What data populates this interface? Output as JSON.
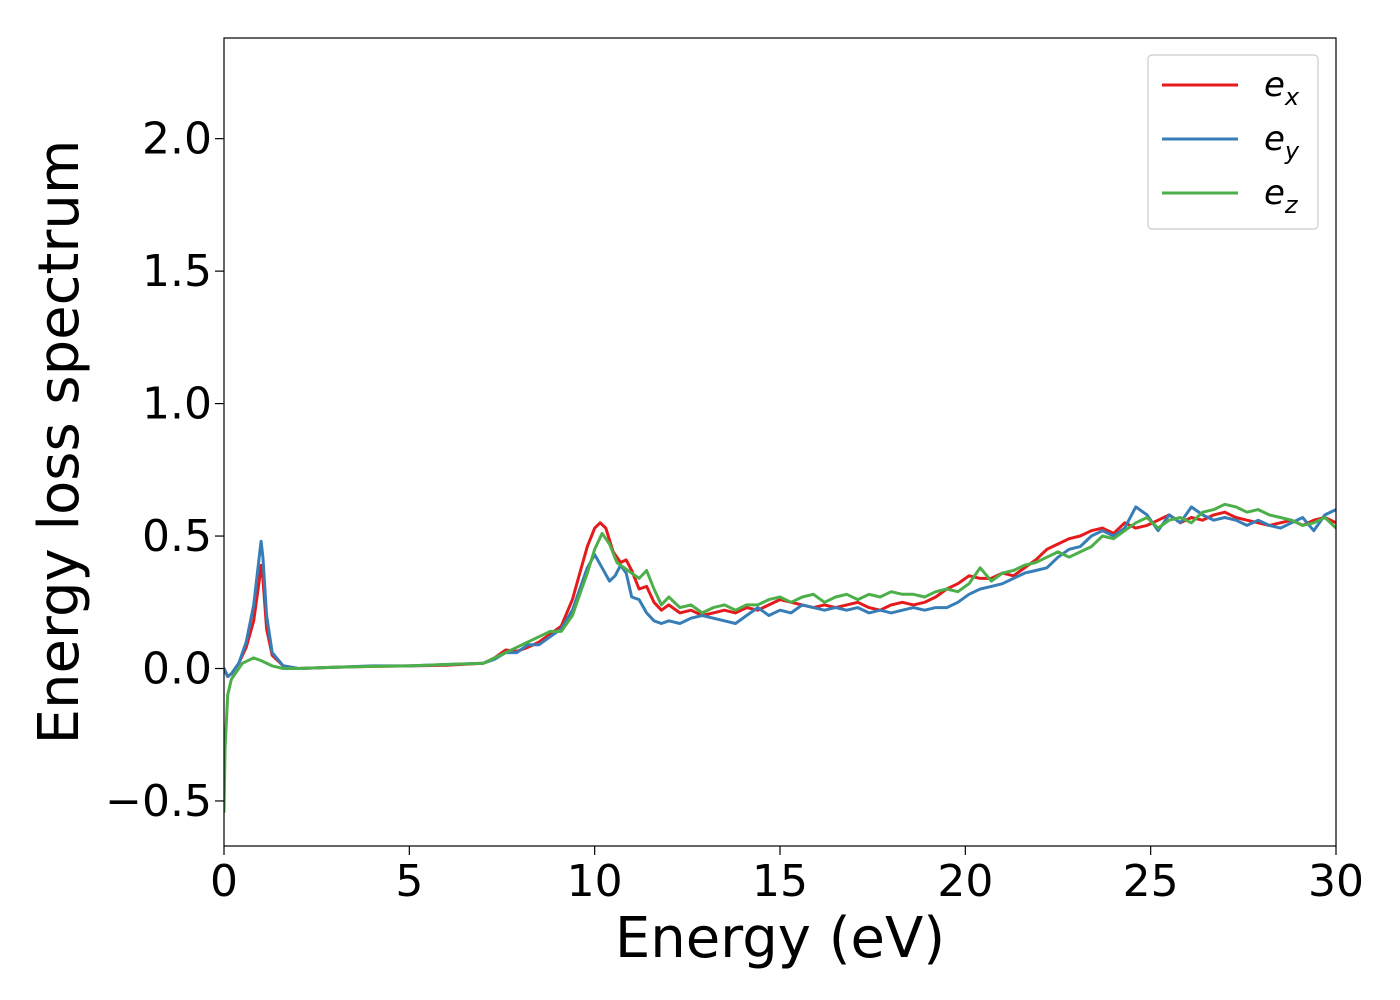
{
  "chart_data": {
    "type": "line",
    "title": "",
    "xlabel": "Energy (eV)",
    "ylabel": "Energy loss spectrum",
    "xlim": [
      0,
      30
    ],
    "ylim": [
      -0.67,
      2.38
    ],
    "xticks": [
      0,
      5,
      10,
      15,
      20,
      25,
      30
    ],
    "xtick_labels": [
      "0",
      "5",
      "10",
      "15",
      "20",
      "25",
      "30"
    ],
    "yticks": [
      -0.5,
      0.0,
      0.5,
      1.0,
      1.5,
      2.0
    ],
    "ytick_labels": [
      "−0.5",
      "0.0",
      "0.5",
      "1.0",
      "1.5",
      "2.0"
    ],
    "grid": false,
    "legend_position": "top-right",
    "series": [
      {
        "name": "e_x",
        "legend_base": "e",
        "legend_sub": "x",
        "color": "#e41a1c",
        "x": [
          0,
          0.1,
          0.2,
          0.4,
          0.6,
          0.8,
          0.95,
          1.0,
          1.05,
          1.15,
          1.3,
          1.6,
          2.0,
          3,
          4,
          5,
          6,
          7,
          7.3,
          7.6,
          7.9,
          8.2,
          8.5,
          8.8,
          9.1,
          9.4,
          9.6,
          9.8,
          10.0,
          10.15,
          10.3,
          10.5,
          10.7,
          10.85,
          11.0,
          11.2,
          11.4,
          11.6,
          11.8,
          12.0,
          12.3,
          12.6,
          12.9,
          13.2,
          13.5,
          13.8,
          14.1,
          14.4,
          14.7,
          15.0,
          15.3,
          15.6,
          15.9,
          16.2,
          16.5,
          16.8,
          17.1,
          17.4,
          17.7,
          18.0,
          18.3,
          18.6,
          18.9,
          19.2,
          19.5,
          19.8,
          20.1,
          20.4,
          20.7,
          21.0,
          21.3,
          21.6,
          21.9,
          22.2,
          22.5,
          22.8,
          23.1,
          23.4,
          23.7,
          24.0,
          24.3,
          24.6,
          24.9,
          25.2,
          25.5,
          25.8,
          26.1,
          26.4,
          26.7,
          27.0,
          27.3,
          27.6,
          27.9,
          28.2,
          28.5,
          28.8,
          29.1,
          29.4,
          29.7,
          30.0
        ],
        "y": [
          0.0,
          -0.03,
          -0.02,
          0.02,
          0.08,
          0.18,
          0.33,
          0.39,
          0.34,
          0.15,
          0.05,
          0.01,
          0.0,
          0.005,
          0.008,
          0.01,
          0.012,
          0.02,
          0.04,
          0.07,
          0.065,
          0.08,
          0.1,
          0.13,
          0.16,
          0.26,
          0.36,
          0.46,
          0.53,
          0.55,
          0.53,
          0.44,
          0.4,
          0.41,
          0.37,
          0.3,
          0.31,
          0.25,
          0.22,
          0.24,
          0.21,
          0.22,
          0.2,
          0.21,
          0.22,
          0.21,
          0.23,
          0.22,
          0.24,
          0.26,
          0.25,
          0.24,
          0.23,
          0.24,
          0.23,
          0.24,
          0.25,
          0.23,
          0.22,
          0.24,
          0.25,
          0.24,
          0.25,
          0.27,
          0.3,
          0.32,
          0.35,
          0.34,
          0.34,
          0.36,
          0.35,
          0.38,
          0.41,
          0.45,
          0.47,
          0.49,
          0.5,
          0.52,
          0.53,
          0.51,
          0.55,
          0.53,
          0.54,
          0.56,
          0.58,
          0.55,
          0.57,
          0.56,
          0.58,
          0.59,
          0.57,
          0.56,
          0.55,
          0.54,
          0.55,
          0.56,
          0.54,
          0.56,
          0.57,
          0.55
        ]
      },
      {
        "name": "e_y",
        "legend_base": "e",
        "legend_sub": "y",
        "color": "#377eb8",
        "x": [
          0,
          0.1,
          0.2,
          0.4,
          0.6,
          0.8,
          0.95,
          1.0,
          1.05,
          1.15,
          1.3,
          1.6,
          2.0,
          3,
          4,
          5,
          6,
          7,
          7.3,
          7.6,
          7.9,
          8.2,
          8.5,
          8.8,
          9.1,
          9.4,
          9.6,
          9.8,
          10.0,
          10.2,
          10.4,
          10.55,
          10.7,
          10.85,
          11.0,
          11.2,
          11.4,
          11.6,
          11.8,
          12.0,
          12.3,
          12.6,
          12.9,
          13.2,
          13.5,
          13.8,
          14.1,
          14.4,
          14.7,
          15.0,
          15.3,
          15.6,
          15.9,
          16.2,
          16.5,
          16.8,
          17.1,
          17.4,
          17.7,
          18.0,
          18.3,
          18.6,
          18.9,
          19.2,
          19.5,
          19.8,
          20.1,
          20.4,
          20.7,
          21.0,
          21.3,
          21.6,
          21.9,
          22.2,
          22.5,
          22.8,
          23.1,
          23.4,
          23.7,
          24.0,
          24.3,
          24.6,
          24.9,
          25.2,
          25.5,
          25.8,
          26.1,
          26.4,
          26.7,
          27.0,
          27.3,
          27.6,
          27.9,
          28.2,
          28.5,
          28.8,
          29.1,
          29.4,
          29.7,
          30.0
        ],
        "y": [
          0.0,
          -0.03,
          -0.02,
          0.02,
          0.1,
          0.24,
          0.42,
          0.48,
          0.42,
          0.2,
          0.06,
          0.01,
          0.0,
          0.005,
          0.01,
          0.01,
          0.015,
          0.02,
          0.035,
          0.06,
          0.06,
          0.09,
          0.09,
          0.12,
          0.15,
          0.22,
          0.3,
          0.38,
          0.43,
          0.38,
          0.33,
          0.35,
          0.39,
          0.36,
          0.27,
          0.26,
          0.21,
          0.18,
          0.17,
          0.18,
          0.17,
          0.19,
          0.2,
          0.19,
          0.18,
          0.17,
          0.2,
          0.23,
          0.2,
          0.22,
          0.21,
          0.24,
          0.23,
          0.22,
          0.23,
          0.22,
          0.23,
          0.21,
          0.22,
          0.21,
          0.22,
          0.23,
          0.22,
          0.23,
          0.23,
          0.25,
          0.28,
          0.3,
          0.31,
          0.32,
          0.34,
          0.36,
          0.37,
          0.38,
          0.42,
          0.45,
          0.46,
          0.5,
          0.52,
          0.5,
          0.53,
          0.61,
          0.58,
          0.52,
          0.58,
          0.55,
          0.61,
          0.58,
          0.56,
          0.57,
          0.56,
          0.54,
          0.56,
          0.54,
          0.53,
          0.55,
          0.57,
          0.52,
          0.58,
          0.6
        ]
      },
      {
        "name": "e_z",
        "legend_base": "e",
        "legend_sub": "z",
        "color": "#4daf4a",
        "x": [
          0,
          0.03,
          0.1,
          0.2,
          0.3,
          0.5,
          0.8,
          1.0,
          1.3,
          1.6,
          2.0,
          3,
          4,
          5,
          6,
          7,
          7.3,
          7.6,
          7.9,
          8.2,
          8.5,
          8.8,
          9.1,
          9.4,
          9.6,
          9.8,
          10.0,
          10.2,
          10.4,
          10.6,
          10.8,
          11.0,
          11.2,
          11.4,
          11.6,
          11.8,
          12.0,
          12.3,
          12.6,
          12.9,
          13.2,
          13.5,
          13.8,
          14.1,
          14.4,
          14.7,
          15.0,
          15.3,
          15.6,
          15.9,
          16.2,
          16.5,
          16.8,
          17.1,
          17.4,
          17.7,
          18.0,
          18.3,
          18.6,
          18.9,
          19.2,
          19.5,
          19.8,
          20.1,
          20.4,
          20.7,
          21.0,
          21.3,
          21.6,
          21.9,
          22.2,
          22.5,
          22.8,
          23.1,
          23.4,
          23.7,
          24.0,
          24.3,
          24.6,
          24.9,
          25.2,
          25.5,
          25.8,
          26.1,
          26.4,
          26.7,
          27.0,
          27.3,
          27.6,
          27.9,
          28.2,
          28.5,
          28.8,
          29.1,
          29.4,
          29.7,
          30.0
        ],
        "y": [
          -0.54,
          -0.3,
          -0.1,
          -0.04,
          -0.02,
          0.02,
          0.04,
          0.03,
          0.01,
          0.0,
          0.0,
          0.005,
          0.008,
          0.01,
          0.015,
          0.02,
          0.04,
          0.06,
          0.08,
          0.1,
          0.12,
          0.14,
          0.14,
          0.2,
          0.28,
          0.36,
          0.45,
          0.51,
          0.47,
          0.4,
          0.38,
          0.36,
          0.34,
          0.37,
          0.3,
          0.24,
          0.27,
          0.23,
          0.24,
          0.21,
          0.23,
          0.24,
          0.22,
          0.24,
          0.24,
          0.26,
          0.27,
          0.25,
          0.27,
          0.28,
          0.25,
          0.27,
          0.28,
          0.26,
          0.28,
          0.27,
          0.29,
          0.28,
          0.28,
          0.27,
          0.29,
          0.3,
          0.29,
          0.32,
          0.38,
          0.33,
          0.36,
          0.37,
          0.39,
          0.4,
          0.42,
          0.44,
          0.42,
          0.44,
          0.46,
          0.5,
          0.49,
          0.52,
          0.55,
          0.57,
          0.53,
          0.56,
          0.57,
          0.55,
          0.59,
          0.6,
          0.62,
          0.61,
          0.59,
          0.6,
          0.58,
          0.57,
          0.56,
          0.54,
          0.55,
          0.57,
          0.53
        ]
      }
    ]
  }
}
